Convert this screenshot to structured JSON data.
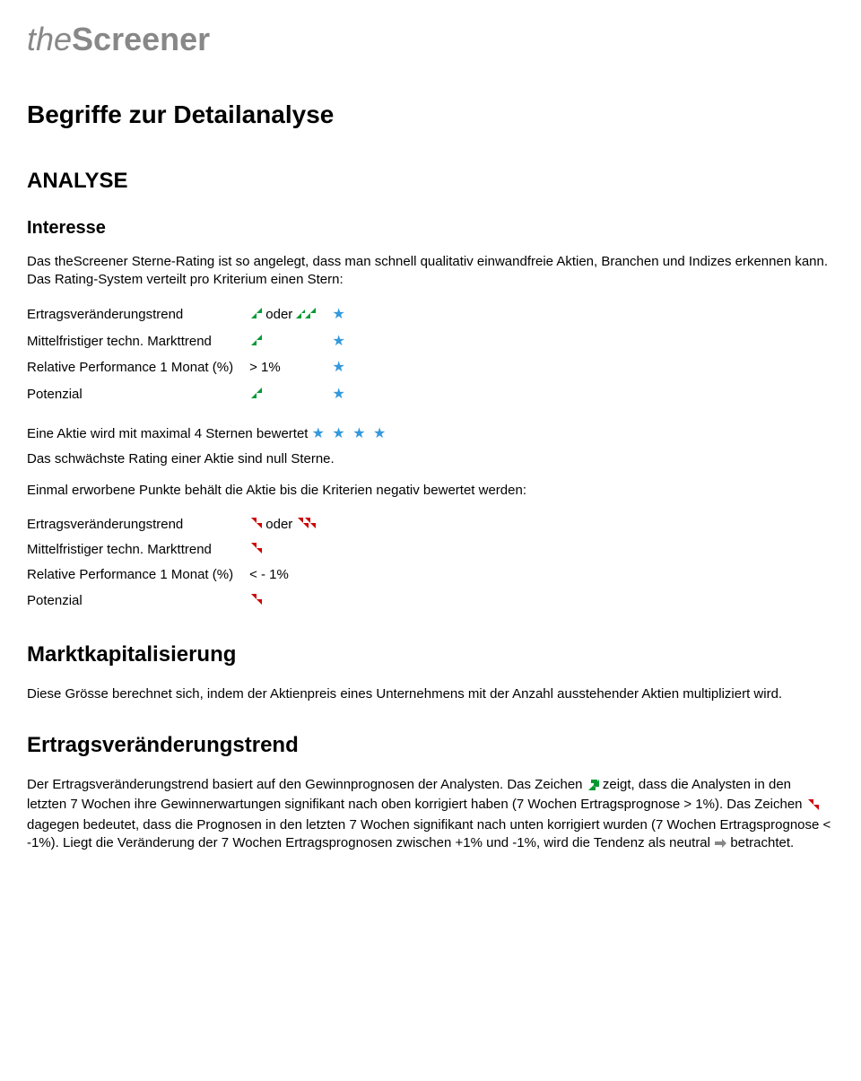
{
  "logo": {
    "the": "the",
    "screener": "Screener"
  },
  "title": "Begriffe zur Detailanalyse",
  "section_analyse": "ANALYSE",
  "interesse": {
    "heading": "Interesse",
    "intro": "Das theScreener Sterne-Rating ist so angelegt, dass man schnell qualitativ einwandfreie Aktien, Branchen und Indizes erkennen kann. Das Rating-System verteilt pro Kriterium einen Stern:",
    "pos_table": {
      "rows": [
        {
          "label": "Ertragsveränderungstrend",
          "value_prefix_icon": "arrow-up-green",
          "value_text": " oder ",
          "value_suffix_icon": "double-arrow-up-green",
          "star": true
        },
        {
          "label": "Mittelfristiger techn. Markttrend",
          "value_prefix_icon": "arrow-up-green",
          "value_text": "",
          "value_suffix_icon": "",
          "star": true
        },
        {
          "label": "Relative Performance 1 Monat (%)",
          "value_prefix_icon": "",
          "value_text": "> 1%",
          "value_suffix_icon": "",
          "star": true
        },
        {
          "label": "Potenzial",
          "value_prefix_icon": "arrow-up-green",
          "value_text": "",
          "value_suffix_icon": "",
          "star": true
        }
      ]
    },
    "mid_line1_a": "Eine Aktie wird mit maximal 4 Sternen bewertet ",
    "mid_line2": "Das schwächste Rating einer Aktie sind null Sterne.",
    "mid_line3": "Einmal erworbene Punkte behält die Aktie bis die Kriterien negativ bewertet werden:",
    "neg_table": {
      "rows": [
        {
          "label": "Ertragsveränderungstrend",
          "value_prefix_icon": "arrow-down-red",
          "value_text": " oder ",
          "value_suffix_icon": "double-arrow-down-red"
        },
        {
          "label": "Mittelfristiger techn. Markttrend",
          "value_prefix_icon": "arrow-down-red",
          "value_text": "",
          "value_suffix_icon": ""
        },
        {
          "label": "Relative Performance 1 Monat (%)",
          "value_prefix_icon": "",
          "value_text": "< - 1%",
          "value_suffix_icon": ""
        },
        {
          "label": "Potenzial",
          "value_prefix_icon": "arrow-down-red",
          "value_text": "",
          "value_suffix_icon": ""
        }
      ]
    }
  },
  "marktkap": {
    "heading": "Marktkapitalisierung",
    "body": "Diese Grösse berechnet sich, indem der Aktienpreis eines Unternehmens mit der Anzahl ausstehender Aktien multipliziert wird."
  },
  "ertrag": {
    "heading": "Ertragsveränderungstrend",
    "p1a": "Der Ertragsveränderungstrend basiert auf den Gewinnprognosen der Analysten. Das Zeichen ",
    "p1b": " zeigt, dass die Analysten in den letzten 7 Wochen ihre Gewinnerwartungen signifikant nach oben korrigiert haben (7 Wochen Ertragsprognose > 1%). Das Zeichen ",
    "p1c": " dagegen bedeutet, dass die Prognosen in den letzten 7 Wochen signifikant nach unten korrigiert wurden (7 Wochen Ertragsprognose < -1%). Liegt die Veränderung der 7 Wochen Ertragsprognosen zwischen +1% und -1%, wird die Tendenz als neutral ",
    "p1d": " betrachtet."
  },
  "colors": {
    "green": "#009933",
    "red": "#cc0000",
    "blue": "#3399dd",
    "grey": "#888888"
  }
}
